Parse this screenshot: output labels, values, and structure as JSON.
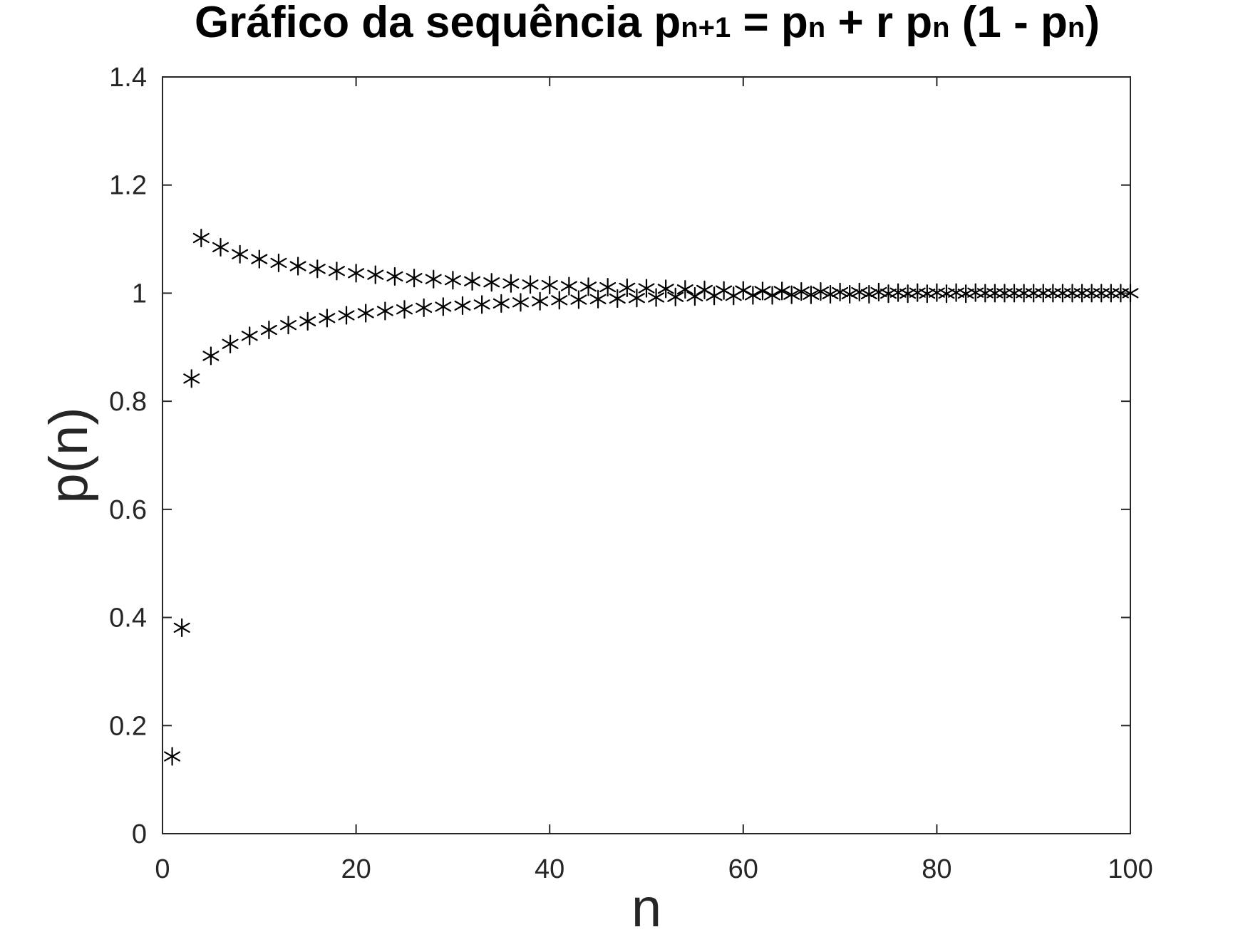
{
  "chart_data": {
    "type": "scatter",
    "title": {
      "parts": [
        {
          "text": "Gráfico da sequência p",
          "sub": false
        },
        {
          "text": "n+1",
          "sub": true
        },
        {
          "text": " = p",
          "sub": false
        },
        {
          "text": "n",
          "sub": true
        },
        {
          "text": " + r p",
          "sub": false
        },
        {
          "text": "n",
          "sub": true
        },
        {
          "text": " (1 - p",
          "sub": false
        },
        {
          "text": "n",
          "sub": true
        },
        {
          "text": ")",
          "sub": false
        }
      ]
    },
    "xlabel": "n",
    "ylabel": "p(n)",
    "xlim": [
      0,
      100
    ],
    "ylim": [
      0,
      1.4
    ],
    "xticks": [
      0,
      20,
      40,
      60,
      80,
      100
    ],
    "xtick_labels": [
      "0",
      "20",
      "40",
      "60",
      "80",
      "100"
    ],
    "yticks": [
      0,
      0.2,
      0.4,
      0.6,
      0.8,
      1.0,
      1.2,
      1.4
    ],
    "ytick_labels": [
      "0",
      "0.2",
      "0.4",
      "0.6",
      "0.8",
      "1",
      "1.2",
      "1.4"
    ],
    "grid": false,
    "marker": "asterisk",
    "marker_color": "#000000",
    "series": [
      {
        "x": [
          1,
          2,
          3,
          4,
          5,
          6,
          7,
          8,
          9,
          10,
          11,
          12,
          13,
          14,
          15,
          16,
          17,
          18,
          19,
          20,
          21,
          22,
          23,
          24,
          25,
          26,
          27,
          28,
          29,
          30,
          31,
          32,
          33,
          34,
          35,
          36,
          37,
          38,
          39,
          40,
          41,
          42,
          43,
          44,
          45,
          46,
          47,
          48,
          49,
          50,
          51,
          52,
          53,
          54,
          55,
          56,
          57,
          58,
          59,
          60,
          61,
          62,
          63,
          64,
          65,
          66,
          67,
          68,
          69,
          70,
          71,
          72,
          73,
          74,
          75,
          76,
          77,
          78,
          79,
          80,
          81,
          82,
          83,
          84,
          85,
          86,
          87,
          88,
          89,
          90,
          91,
          92,
          93,
          94,
          95,
          96,
          97,
          98,
          99,
          100
        ],
        "y": [
          0.143,
          0.381,
          0.842,
          1.102,
          0.884,
          1.085,
          0.906,
          1.072,
          0.921,
          1.063,
          0.932,
          1.056,
          0.941,
          1.05,
          0.948,
          1.045,
          0.954,
          1.041,
          0.959,
          1.037,
          0.963,
          1.034,
          0.967,
          1.031,
          0.97,
          1.028,
          0.973,
          1.026,
          0.975,
          1.024,
          0.977,
          1.022,
          0.979,
          1.02,
          0.981,
          1.018,
          0.983,
          1.016,
          0.985,
          1.015,
          0.987,
          1.013,
          0.988,
          1.012,
          0.989,
          1.011,
          0.99,
          1.01,
          0.991,
          1.009,
          0.992,
          1.008,
          0.993,
          1.007,
          0.994,
          1.006,
          0.995,
          1.005,
          0.995,
          1.005,
          0.996,
          1.004,
          0.996,
          1.004,
          0.997,
          1.003,
          0.997,
          1.003,
          0.998,
          1.002,
          0.998,
          1.002,
          0.998,
          1.002,
          0.999,
          1.001,
          0.999,
          1.001,
          0.999,
          1.001,
          0.999,
          1.001,
          0.999,
          1.001,
          1.0,
          1.0,
          1.0,
          1.0,
          1.0,
          1.0,
          1.0,
          1.0,
          1.0,
          1.0,
          1.0,
          1.0,
          1.0,
          1.0,
          1.0,
          1.0
        ]
      }
    ]
  }
}
